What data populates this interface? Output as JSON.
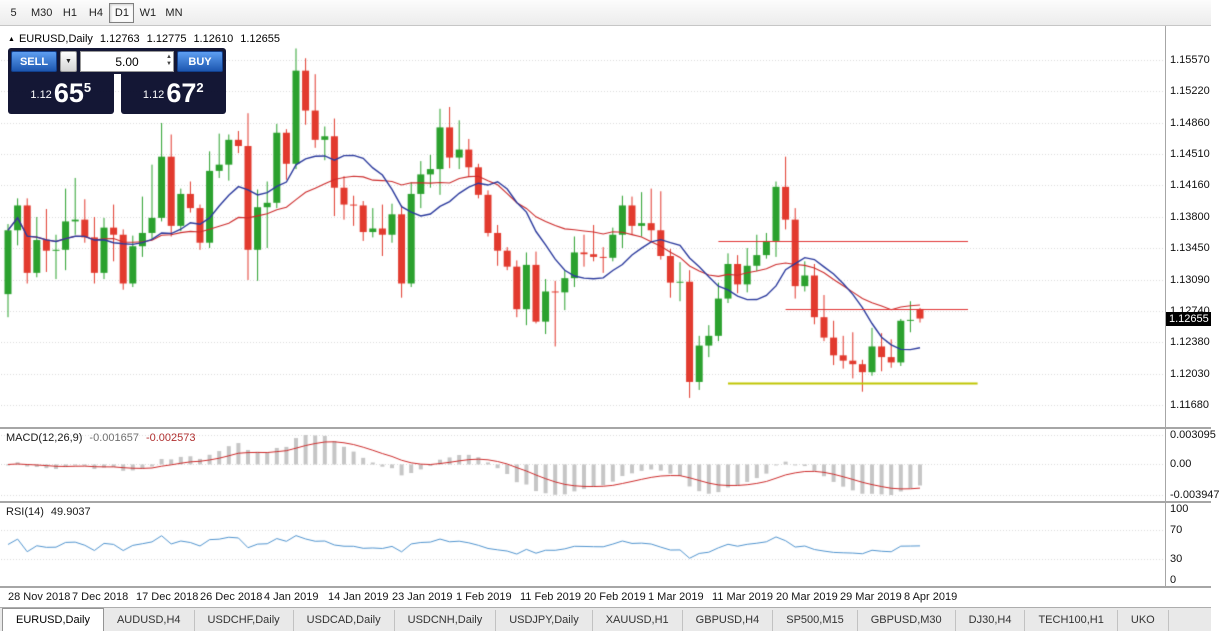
{
  "toolbar": {
    "periods": [
      "5",
      "M30",
      "H1",
      "H4",
      "D1",
      "W1",
      "MN"
    ],
    "active_period": "D1"
  },
  "chart_header": {
    "symbol": "EURUSD,Daily",
    "open": "1.12763",
    "high": "1.12775",
    "low": "1.12610",
    "close": "1.12655"
  },
  "trade_panel": {
    "sell_label": "SELL",
    "buy_label": "BUY",
    "volume": "5.00",
    "bid": {
      "prefix": "1.12",
      "big": "65",
      "sup": "5"
    },
    "ask": {
      "prefix": "1.12",
      "big": "67",
      "sup": "2"
    }
  },
  "price_axis": {
    "labels": [
      "1.15570",
      "1.15220",
      "1.14860",
      "1.14510",
      "1.14160",
      "1.13800",
      "1.13450",
      "1.13090",
      "1.12740",
      "1.12380",
      "1.12030",
      "1.11680"
    ],
    "current_price": "1.12655"
  },
  "macd_panel": {
    "title": "MACD(12,26,9)",
    "value_main": "-0.001657",
    "value_signal": "-0.002573",
    "axis_labels": [
      "0.003095",
      "0.00",
      "-0.003947"
    ]
  },
  "rsi_panel": {
    "title": "RSI(14)",
    "value": "49.9037",
    "axis_labels": [
      "100",
      "70",
      "30",
      "0"
    ]
  },
  "date_axis": [
    "28 Nov 2018",
    "7 Dec 2018",
    "17 Dec 2018",
    "26 Dec 2018",
    "4 Jan 2019",
    "14 Jan 2019",
    "23 Jan 2019",
    "1 Feb 2019",
    "11 Feb 2019",
    "20 Feb 2019",
    "1 Mar 2019",
    "11 Mar 2019",
    "20 Mar 2019",
    "29 Mar 2019",
    "8 Apr 2019"
  ],
  "tabs": [
    "EURUSD,Daily",
    "AUDUSD,H4",
    "USDCHF,Daily",
    "USDCAD,Daily",
    "USDCNH,Daily",
    "USDJPY,Daily",
    "XAUUSD,H1",
    "GBPUSD,H4",
    "SP500,M15",
    "GBPUSD,M30",
    "DJ30,H4",
    "TECH100,H1",
    "UKO"
  ],
  "active_tab": "EURUSD,Daily",
  "colors": {
    "up": "#2ba12e",
    "down": "#e23a2e",
    "grid": "#d9d9d9",
    "macd_hist": "#c6c6c6",
    "macd_signal": "#cc2a2a",
    "rsi": "#4f93ce",
    "badge_bg": "#000000",
    "accent_blue": "#1d57b0"
  },
  "chart_data": {
    "type": "candlestick",
    "symbol": "EURUSD",
    "timeframe": "Daily",
    "price_range": {
      "top": 1.1557,
      "bottom": 1.1168
    },
    "ohlc": [
      [
        1.1293,
        1.1372,
        1.1267,
        1.1365
      ],
      [
        1.1365,
        1.1401,
        1.1348,
        1.1393
      ],
      [
        1.1393,
        1.1401,
        1.1305,
        1.1317
      ],
      [
        1.1317,
        1.138,
        1.1312,
        1.1354
      ],
      [
        1.1354,
        1.1389,
        1.1318,
        1.1342
      ],
      [
        1.1342,
        1.136,
        1.131,
        1.1343
      ],
      [
        1.1343,
        1.1412,
        1.132,
        1.1375
      ],
      [
        1.1375,
        1.1424,
        1.136,
        1.1377
      ],
      [
        1.1377,
        1.14,
        1.1351,
        1.1357
      ],
      [
        1.1357,
        1.138,
        1.1305,
        1.1317
      ],
      [
        1.1317,
        1.1379,
        1.131,
        1.1368
      ],
      [
        1.1368,
        1.1394,
        1.133,
        1.136
      ],
      [
        1.136,
        1.1366,
        1.1298,
        1.1305
      ],
      [
        1.1305,
        1.1359,
        1.1301,
        1.1347
      ],
      [
        1.1347,
        1.1403,
        1.1335,
        1.1362
      ],
      [
        1.1362,
        1.1439,
        1.1355,
        1.1379
      ],
      [
        1.1379,
        1.1486,
        1.1375,
        1.1448
      ],
      [
        1.1448,
        1.1473,
        1.1358,
        1.137
      ],
      [
        1.137,
        1.1412,
        1.1364,
        1.1406
      ],
      [
        1.1406,
        1.142,
        1.1385,
        1.139
      ],
      [
        1.139,
        1.1394,
        1.1343,
        1.1351
      ],
      [
        1.1351,
        1.1454,
        1.1345,
        1.1432
      ],
      [
        1.1432,
        1.1474,
        1.1424,
        1.1439
      ],
      [
        1.1439,
        1.1473,
        1.1421,
        1.1467
      ],
      [
        1.1467,
        1.1477,
        1.1452,
        1.146
      ],
      [
        1.146,
        1.1497,
        1.1309,
        1.1343
      ],
      [
        1.1343,
        1.1411,
        1.1308,
        1.1391
      ],
      [
        1.1391,
        1.142,
        1.1345,
        1.1396
      ],
      [
        1.1396,
        1.1485,
        1.139,
        1.1475
      ],
      [
        1.1475,
        1.1479,
        1.1422,
        1.144
      ],
      [
        1.144,
        1.157,
        1.1434,
        1.1545
      ],
      [
        1.1545,
        1.1559,
        1.1484,
        1.15
      ],
      [
        1.15,
        1.1541,
        1.1458,
        1.1467
      ],
      [
        1.1467,
        1.1482,
        1.1444,
        1.1471
      ],
      [
        1.1471,
        1.1491,
        1.1381,
        1.1413
      ],
      [
        1.1413,
        1.1426,
        1.1377,
        1.1394
      ],
      [
        1.1394,
        1.1404,
        1.137,
        1.1393
      ],
      [
        1.1393,
        1.1398,
        1.1353,
        1.1363
      ],
      [
        1.1363,
        1.139,
        1.1357,
        1.1367
      ],
      [
        1.1367,
        1.1394,
        1.1336,
        1.136
      ],
      [
        1.136,
        1.1395,
        1.1351,
        1.1383
      ],
      [
        1.1383,
        1.1393,
        1.1289,
        1.1305
      ],
      [
        1.1305,
        1.1419,
        1.1301,
        1.1406
      ],
      [
        1.1406,
        1.1443,
        1.139,
        1.1428
      ],
      [
        1.1428,
        1.145,
        1.1413,
        1.1434
      ],
      [
        1.1434,
        1.1502,
        1.1405,
        1.1481
      ],
      [
        1.1481,
        1.1504,
        1.1435,
        1.1447
      ],
      [
        1.1447,
        1.1489,
        1.1434,
        1.1456
      ],
      [
        1.1456,
        1.1468,
        1.1425,
        1.1436
      ],
      [
        1.1436,
        1.144,
        1.1401,
        1.1405
      ],
      [
        1.1405,
        1.141,
        1.1358,
        1.1362
      ],
      [
        1.1362,
        1.1371,
        1.1325,
        1.1342
      ],
      [
        1.1342,
        1.1346,
        1.132,
        1.1324
      ],
      [
        1.1324,
        1.1331,
        1.1267,
        1.1276
      ],
      [
        1.1276,
        1.134,
        1.1258,
        1.1326
      ],
      [
        1.1326,
        1.1341,
        1.126,
        1.1262
      ],
      [
        1.1262,
        1.131,
        1.1248,
        1.1296
      ],
      [
        1.1296,
        1.1308,
        1.1234,
        1.1295
      ],
      [
        1.1295,
        1.132,
        1.1275,
        1.1311
      ],
      [
        1.1311,
        1.1358,
        1.1301,
        1.134
      ],
      [
        1.134,
        1.136,
        1.1324,
        1.1338
      ],
      [
        1.1338,
        1.1371,
        1.133,
        1.1335
      ],
      [
        1.1335,
        1.1346,
        1.1317,
        1.1334
      ],
      [
        1.1334,
        1.1368,
        1.133,
        1.136
      ],
      [
        1.136,
        1.1404,
        1.1345,
        1.1393
      ],
      [
        1.1393,
        1.1403,
        1.136,
        1.137
      ],
      [
        1.137,
        1.1408,
        1.1358,
        1.1373
      ],
      [
        1.1373,
        1.1412,
        1.1352,
        1.1365
      ],
      [
        1.1365,
        1.1409,
        1.1332,
        1.1336
      ],
      [
        1.1336,
        1.1344,
        1.1289,
        1.1306
      ],
      [
        1.1306,
        1.1329,
        1.1285,
        1.1307
      ],
      [
        1.1307,
        1.132,
        1.1176,
        1.1194
      ],
      [
        1.1194,
        1.1246,
        1.1185,
        1.1235
      ],
      [
        1.1235,
        1.1258,
        1.1222,
        1.1246
      ],
      [
        1.1246,
        1.1306,
        1.124,
        1.1288
      ],
      [
        1.1288,
        1.1339,
        1.1283,
        1.1327
      ],
      [
        1.1327,
        1.1337,
        1.1294,
        1.1304
      ],
      [
        1.1304,
        1.1345,
        1.1295,
        1.1325
      ],
      [
        1.1325,
        1.136,
        1.1319,
        1.1337
      ],
      [
        1.1337,
        1.1362,
        1.1333,
        1.1353
      ],
      [
        1.1353,
        1.142,
        1.1335,
        1.1414
      ],
      [
        1.1414,
        1.1448,
        1.1366,
        1.1377
      ],
      [
        1.1377,
        1.139,
        1.1288,
        1.1302
      ],
      [
        1.1302,
        1.133,
        1.1296,
        1.1314
      ],
      [
        1.1314,
        1.1327,
        1.1259,
        1.1267
      ],
      [
        1.1267,
        1.1292,
        1.124,
        1.1244
      ],
      [
        1.1244,
        1.1263,
        1.1213,
        1.1224
      ],
      [
        1.1224,
        1.1246,
        1.1209,
        1.1218
      ],
      [
        1.1218,
        1.125,
        1.1198,
        1.1214
      ],
      [
        1.1214,
        1.1219,
        1.1183,
        1.1205
      ],
      [
        1.1205,
        1.1255,
        1.1201,
        1.1234
      ],
      [
        1.1234,
        1.1249,
        1.1206,
        1.1222
      ],
      [
        1.1222,
        1.1242,
        1.121,
        1.1216
      ],
      [
        1.1216,
        1.1265,
        1.1212,
        1.1263
      ],
      [
        1.1263,
        1.1285,
        1.125,
        1.1264
      ],
      [
        1.12763,
        1.12775,
        1.1261,
        1.12655
      ]
    ],
    "moving_averages": [
      {
        "period": 22,
        "color": "#cc2a2a",
        "width": 1.1
      },
      {
        "period": 10,
        "color": "#2b3a9d",
        "width": 1.4
      }
    ],
    "trend_lines": [
      {
        "price": 1.1353,
        "from_bar": 74,
        "to_bar": 100,
        "color": "#e03232",
        "width": 1
      },
      {
        "price": 1.1276,
        "from_bar": 81,
        "to_bar": 100,
        "color": "#e03232",
        "width": 1
      },
      {
        "price": 1.1193,
        "from_bar": 75,
        "to_bar": 101,
        "color": "#bfc400",
        "width": 2
      }
    ],
    "indicators": {
      "macd": {
        "fast": 12,
        "slow": 26,
        "signal": 9
      },
      "rsi": {
        "period": 14
      }
    }
  }
}
